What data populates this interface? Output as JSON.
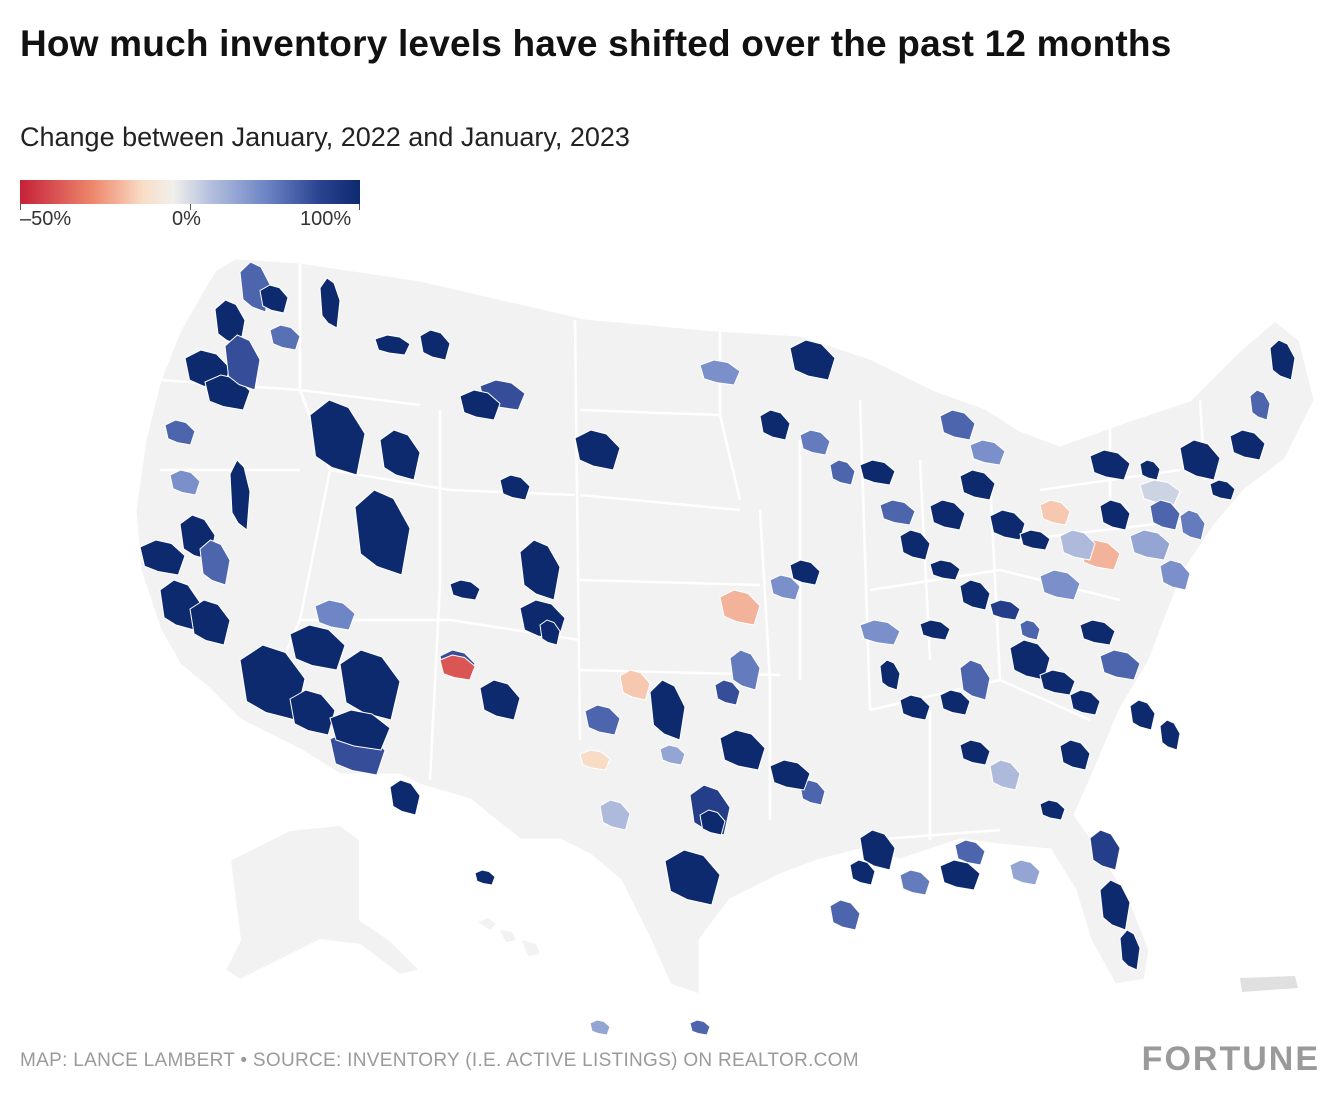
{
  "header": {
    "title": "How much inventory levels have shifted over the past 12 months",
    "subtitle": "Change between January, 2022 and January, 2023"
  },
  "legend": {
    "min_label": "–50%",
    "mid_label": "0%",
    "max_label": "100%",
    "min_value": -50,
    "mid_value": 0,
    "max_value": 100,
    "colors": [
      "#c6213a",
      "#ee8a6e",
      "#f8dcc6",
      "#f2f0ea",
      "#b9c4e0",
      "#6f86c6",
      "#2b4391",
      "#0d2a6e"
    ]
  },
  "map": {
    "region": "United States (metro areas)",
    "base_color": "#f2f2f2",
    "border_color": "#ffffff",
    "metros": [
      {
        "value": 100
      },
      {
        "value": 100
      },
      {
        "value": 60
      },
      {
        "value": 100
      },
      {
        "value": 100
      },
      {
        "value": 55
      },
      {
        "value": 100
      },
      {
        "value": 100
      },
      {
        "value": 60
      },
      {
        "value": 100
      },
      {
        "value": 100
      },
      {
        "value": 40
      },
      {
        "value": 100
      },
      {
        "value": 100
      },
      {
        "value": 100
      },
      {
        "value": 100
      },
      {
        "value": 60
      },
      {
        "value": 100
      },
      {
        "value": 100
      },
      {
        "value": 100
      },
      {
        "value": 100
      },
      {
        "value": 45
      },
      {
        "value": 100
      },
      {
        "value": 100
      },
      {
        "value": 70
      },
      {
        "value": 100
      },
      {
        "value": 100
      },
      {
        "value": 100
      },
      {
        "value": 100
      },
      {
        "value": 70
      },
      {
        "value": 100
      },
      {
        "value": -40
      },
      {
        "value": 100
      },
      {
        "value": 100
      },
      {
        "value": 100
      },
      {
        "value": 70
      },
      {
        "value": 100
      },
      {
        "value": 100
      },
      {
        "value": 100
      },
      {
        "value": 100
      },
      {
        "value": 100
      },
      {
        "value": 60
      },
      {
        "value": 100
      },
      {
        "value": 100
      },
      {
        "value": 80
      },
      {
        "value": 100
      },
      {
        "value": 100
      },
      {
        "value": 60
      },
      {
        "value": 70
      },
      {
        "value": 100
      },
      {
        "value": 100
      },
      {
        "value": 60
      },
      {
        "value": 100
      },
      {
        "value": 50
      },
      {
        "value": 100
      },
      {
        "value": 30
      },
      {
        "value": 60
      },
      {
        "value": 20
      },
      {
        "value": -10
      },
      {
        "value": -15
      },
      {
        "value": 30
      },
      {
        "value": -20
      },
      {
        "value": 40
      },
      {
        "value": 50
      },
      {
        "value": 100
      },
      {
        "value": 30
      },
      {
        "value": 70
      },
      {
        "value": -55
      },
      {
        "value": 100
      },
      {
        "value": 60
      },
      {
        "value": 40
      },
      {
        "value": 100
      },
      {
        "value": 100
      },
      {
        "value": 100
      },
      {
        "value": 60
      },
      {
        "value": 100
      },
      {
        "value": 100
      },
      {
        "value": 100
      },
      {
        "value": 100
      },
      {
        "value": 60
      },
      {
        "value": 100
      },
      {
        "value": 100
      },
      {
        "value": 100
      },
      {
        "value": 80
      },
      {
        "value": 100
      },
      {
        "value": 100
      },
      {
        "value": 100
      },
      {
        "value": 100
      },
      {
        "value": 100
      },
      {
        "value": 20
      },
      {
        "value": 100
      },
      {
        "value": 100
      },
      {
        "value": 100
      },
      {
        "value": 80
      },
      {
        "value": 60
      },
      {
        "value": 40
      },
      {
        "value": -20
      },
      {
        "value": 30
      },
      {
        "value": 40
      },
      {
        "value": 50
      },
      {
        "value": 10
      },
      {
        "value": 100
      },
      {
        "value": 100
      },
      {
        "value": 60
      },
      {
        "value": 100
      },
      {
        "value": 100
      },
      {
        "value": 100
      },
      {
        "value": 100
      },
      {
        "value": 60
      },
      {
        "value": 100
      },
      {
        "value": 100
      },
      {
        "value": 100
      },
      {
        "value": 100
      },
      {
        "value": 60
      },
      {
        "value": 40
      },
      {
        "value": -15
      },
      {
        "value": 20
      },
      {
        "value": 100
      },
      {
        "value": 60
      },
      {
        "value": 100
      },
      {
        "value": 100
      },
      {
        "value": 50
      },
      {
        "value": 60
      },
      {
        "value": 40
      },
      {
        "value": 100
      },
      {
        "value": 60
      },
      {
        "value": 100
      },
      {
        "value": 100
      },
      {
        "value": 100
      },
      {
        "value": 70
      }
    ]
  },
  "footer": {
    "credit": "MAP: LANCE LAMBERT • SOURCE: INVENTORY (I.E. ACTIVE LISTINGS) ON REALTOR.COM",
    "brand": "FORTUNE"
  }
}
